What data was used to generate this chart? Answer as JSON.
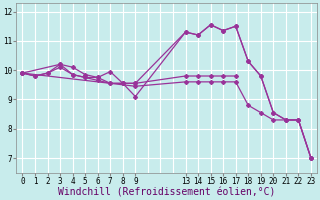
{
  "title": "",
  "xlabel": "Windchill (Refroidissement éolien,°C)",
  "background_color": "#c8ecec",
  "line_color": "#993399",
  "grid_color": "#ffffff",
  "lines": [
    {
      "x": [
        0,
        1,
        2,
        3,
        4,
        5,
        6,
        7,
        8,
        9,
        13,
        14,
        15,
        16,
        17,
        18,
        19,
        20,
        21,
        22,
        23
      ],
      "y": [
        9.9,
        9.8,
        9.9,
        10.2,
        10.1,
        9.85,
        9.75,
        9.55,
        9.55,
        9.1,
        11.3,
        11.2,
        11.55,
        11.35,
        11.5,
        10.3,
        9.8,
        8.55,
        8.3,
        8.3,
        7.0
      ]
    },
    {
      "x": [
        0,
        1,
        2,
        3,
        4,
        5,
        6,
        7,
        8,
        9,
        13,
        14,
        15,
        16,
        17
      ],
      "y": [
        9.9,
        9.8,
        9.9,
        10.1,
        9.85,
        9.75,
        9.75,
        9.95,
        9.55,
        9.55,
        9.8,
        9.8,
        9.8,
        9.8,
        9.8
      ]
    },
    {
      "x": [
        0,
        3,
        4,
        5,
        6,
        7,
        8,
        9,
        13,
        14,
        15,
        16,
        17,
        18,
        19,
        20,
        21,
        22,
        23
      ],
      "y": [
        9.9,
        10.2,
        9.85,
        9.75,
        9.65,
        9.55,
        9.55,
        9.55,
        11.3,
        11.2,
        11.55,
        11.35,
        11.5,
        10.3,
        9.8,
        8.55,
        8.3,
        8.3,
        7.0
      ]
    },
    {
      "x": [
        0,
        9,
        13,
        14,
        15,
        16,
        17,
        18,
        19,
        20,
        21,
        22,
        23
      ],
      "y": [
        9.9,
        9.45,
        9.6,
        9.6,
        9.6,
        9.6,
        9.6,
        8.8,
        8.55,
        8.3,
        8.3,
        8.3,
        7.0
      ]
    }
  ],
  "xticks_shown": [
    0,
    1,
    2,
    3,
    4,
    5,
    6,
    7,
    8,
    9,
    13,
    14,
    15,
    16,
    17,
    18,
    19,
    20,
    21,
    22,
    23
  ],
  "xticks_all": [
    0,
    1,
    2,
    3,
    4,
    5,
    6,
    7,
    8,
    9,
    10,
    11,
    12,
    13,
    14,
    15,
    16,
    17,
    18,
    19,
    20,
    21,
    22,
    23
  ],
  "xticklabels_shown": [
    "0",
    "1",
    "2",
    "3",
    "4",
    "5",
    "6",
    "7",
    "8",
    "9",
    "13",
    "14",
    "15",
    "16",
    "17",
    "18",
    "19",
    "20",
    "21",
    "22",
    "23"
  ],
  "yticks": [
    7,
    8,
    9,
    10,
    11,
    12
  ],
  "ylim": [
    6.5,
    12.3
  ],
  "xlim": [
    -0.5,
    23.5
  ],
  "tick_fontsize": 5.5,
  "xlabel_fontsize": 7
}
